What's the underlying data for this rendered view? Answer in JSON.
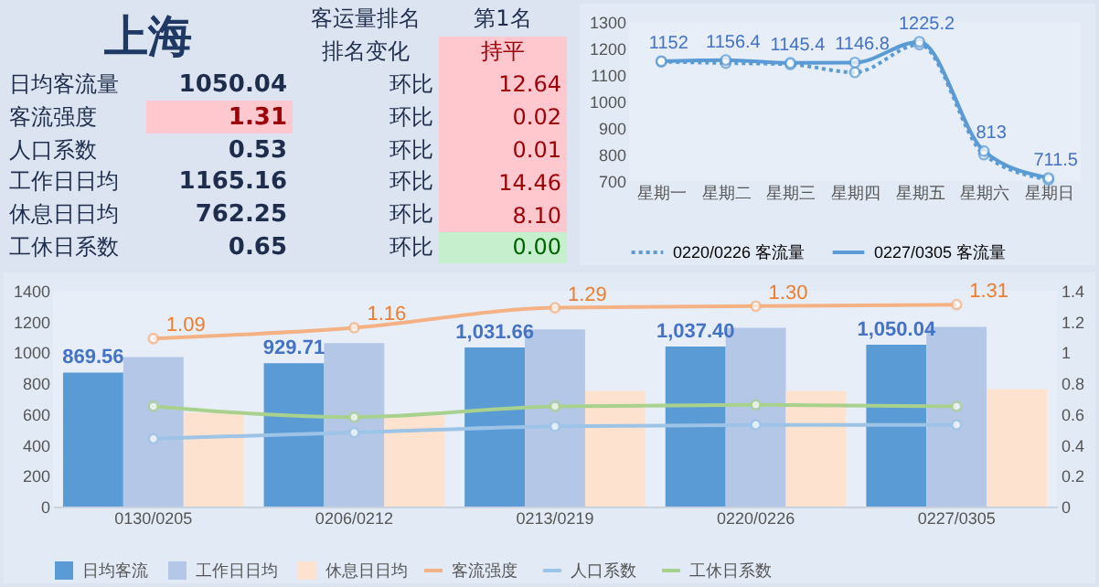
{
  "chart_data": [
    {
      "type": "other",
      "title": "上海",
      "annotations": [
        "客运量排名",
        "第1名",
        "排名变化",
        "持平",
        "日均客流量",
        "1050.04",
        "环比",
        "12.64",
        "客流强度",
        "1.31",
        "环比",
        "0.02",
        "人口系数",
        "0.53",
        "环比",
        "0.01",
        "工作日日均",
        "1165.16",
        "环比",
        "14.46",
        "休息日日均",
        "762.25",
        "环比",
        "8.10",
        "工休日系数",
        "0.65",
        "环比",
        "0.00"
      ]
    },
    {
      "type": "line",
      "categories": [
        "星期一",
        "星期二",
        "星期三",
        "星期四",
        "星期五",
        "星期六",
        "星期日"
      ],
      "ylim": [
        700,
        1300
      ],
      "yticks": [
        700,
        800,
        900,
        1000,
        1100,
        1200,
        1300
      ],
      "marker": "circle",
      "legend": "bottom",
      "series": [
        {
          "name": "0220/0226 客流量",
          "color": "#5b9bd5",
          "line_style": "dotted",
          "values": [
            1150,
            1145,
            1140,
            1110,
            1215,
            800,
            705
          ]
        },
        {
          "name": "0227/0305 客流量",
          "color": "#5b9bd5",
          "line_style": "solid",
          "values": [
            1152,
            1156.4,
            1145.4,
            1146.8,
            1225.2,
            813,
            711.5
          ],
          "value_labels": [
            "1152",
            "1156.4",
            "1145.4",
            "1146.8",
            "1225.2",
            "813",
            "711.5"
          ]
        }
      ]
    },
    {
      "type": "bar",
      "categories": [
        "0130/0205",
        "0206/0212",
        "0213/0219",
        "0220/0226",
        "0227/0305"
      ],
      "ylim": [
        0,
        1400
      ],
      "yticks": [
        0,
        200,
        400,
        600,
        800,
        1000,
        1200,
        1400
      ],
      "y2lim": [
        0,
        1.4
      ],
      "y2ticks": [
        0,
        0.2,
        0.4,
        0.6,
        0.8,
        1,
        1.2,
        1.4
      ],
      "marker": "circle",
      "legend": "bottom",
      "series": [
        {
          "name": "日均客流",
          "type": "bar",
          "color": "#5b9bd5",
          "values": [
            869.56,
            929.71,
            1031.66,
            1037.4,
            1050.04
          ],
          "value_labels": [
            "869.56",
            "929.71",
            "1,031.66",
            "1,037.40",
            "1,050.04"
          ]
        },
        {
          "name": "工作日日均",
          "type": "bar",
          "color": "#b4c7e7",
          "values": [
            970,
            1060,
            1150,
            1160,
            1165.16
          ]
        },
        {
          "name": "休息日日均",
          "type": "bar",
          "color": "#fde3cf",
          "values": [
            610,
            590,
            750,
            750,
            762.25
          ]
        },
        {
          "name": "客流强度",
          "type": "line",
          "axis": "y2",
          "color": "#f4b183",
          "values": [
            1.09,
            1.16,
            1.29,
            1.3,
            1.31
          ],
          "value_labels": [
            "1.09",
            "1.16",
            "1.29",
            "1.30",
            "1.31"
          ]
        },
        {
          "name": "人口系数",
          "type": "line",
          "axis": "y2",
          "color": "#9dc3e6",
          "values": [
            0.44,
            0.48,
            0.52,
            0.53,
            0.53
          ]
        },
        {
          "name": "工休日系数",
          "type": "line",
          "axis": "y2",
          "color": "#a9d18e",
          "values": [
            0.65,
            0.58,
            0.65,
            0.66,
            0.65
          ]
        }
      ]
    }
  ]
}
